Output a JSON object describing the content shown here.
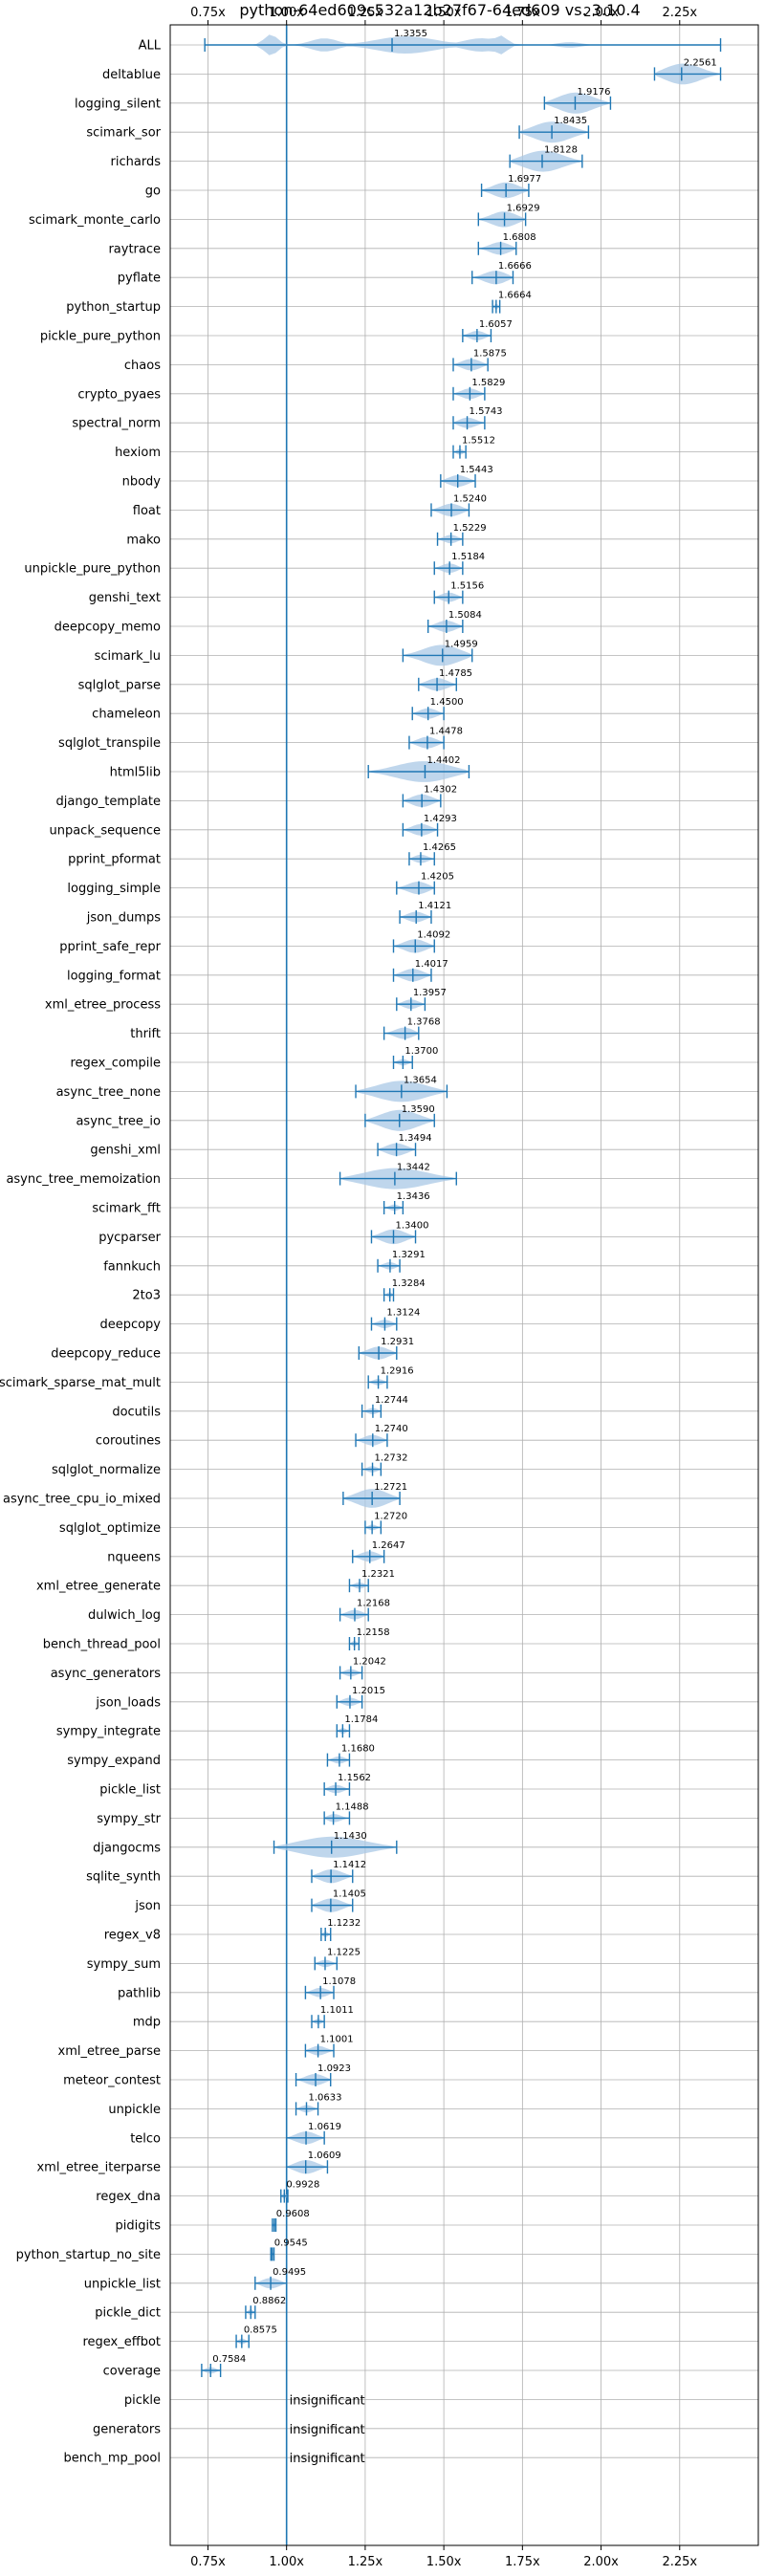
{
  "chart_data": {
    "type": "violin",
    "title": "python-64ed609c532a12b27f67-64ed609 vs. 3.10.4",
    "xlabel": "",
    "ylabel": "",
    "xlim": [
      0.63,
      2.5
    ],
    "x_ticks": [
      0.75,
      1.0,
      1.25,
      1.5,
      1.75,
      2.0,
      2.25
    ],
    "x_tick_labels": [
      "0.75x",
      "1.00x",
      "1.25x",
      "1.50x",
      "1.75x",
      "2.00x",
      "2.25x"
    ],
    "x_ticks_top": true,
    "grid": true,
    "reference_line": 1.0,
    "insignificant_text": "insignificant",
    "benchmarks": [
      {
        "name": "ALL",
        "value": 1.3355,
        "min": 0.74,
        "max": 2.38,
        "shape": "multi",
        "label": "1.3355"
      },
      {
        "name": "deltablue",
        "value": 2.2561,
        "min": 2.17,
        "max": 2.38,
        "label": "2.2561"
      },
      {
        "name": "logging_silent",
        "value": 1.9176,
        "min": 1.82,
        "max": 2.03,
        "label": "1.9176"
      },
      {
        "name": "scimark_sor",
        "value": 1.8435,
        "min": 1.74,
        "max": 1.96,
        "label": "1.8435"
      },
      {
        "name": "richards",
        "value": 1.8128,
        "min": 1.71,
        "max": 1.94,
        "label": "1.8128"
      },
      {
        "name": "go",
        "value": 1.6977,
        "min": 1.62,
        "max": 1.77,
        "label": "1.6977"
      },
      {
        "name": "scimark_monte_carlo",
        "value": 1.6929,
        "min": 1.61,
        "max": 1.76,
        "label": "1.6929"
      },
      {
        "name": "raytrace",
        "value": 1.6808,
        "min": 1.61,
        "max": 1.73,
        "label": "1.6808"
      },
      {
        "name": "pyflate",
        "value": 1.6666,
        "min": 1.59,
        "max": 1.72,
        "label": "1.6666"
      },
      {
        "name": "python_startup",
        "value": 1.6664,
        "min": 1.655,
        "max": 1.678,
        "label": "1.6664"
      },
      {
        "name": "pickle_pure_python",
        "value": 1.6057,
        "min": 1.56,
        "max": 1.65,
        "label": "1.6057"
      },
      {
        "name": "chaos",
        "value": 1.5875,
        "min": 1.53,
        "max": 1.64,
        "label": "1.5875"
      },
      {
        "name": "crypto_pyaes",
        "value": 1.5829,
        "min": 1.53,
        "max": 1.63,
        "label": "1.5829"
      },
      {
        "name": "spectral_norm",
        "value": 1.5743,
        "min": 1.53,
        "max": 1.63,
        "label": "1.5743"
      },
      {
        "name": "hexiom",
        "value": 1.5512,
        "min": 1.53,
        "max": 1.57,
        "label": "1.5512"
      },
      {
        "name": "nbody",
        "value": 1.5443,
        "min": 1.49,
        "max": 1.6,
        "label": "1.5443"
      },
      {
        "name": "float",
        "value": 1.524,
        "min": 1.46,
        "max": 1.58,
        "label": "1.5240"
      },
      {
        "name": "mako",
        "value": 1.5229,
        "min": 1.48,
        "max": 1.56,
        "label": "1.5229"
      },
      {
        "name": "unpickle_pure_python",
        "value": 1.5184,
        "min": 1.47,
        "max": 1.56,
        "label": "1.5184"
      },
      {
        "name": "genshi_text",
        "value": 1.5156,
        "min": 1.47,
        "max": 1.56,
        "label": "1.5156"
      },
      {
        "name": "deepcopy_memo",
        "value": 1.5084,
        "min": 1.45,
        "max": 1.56,
        "label": "1.5084"
      },
      {
        "name": "scimark_lu",
        "value": 1.4959,
        "min": 1.37,
        "max": 1.59,
        "label": "1.4959"
      },
      {
        "name": "sqlglot_parse",
        "value": 1.4785,
        "min": 1.42,
        "max": 1.54,
        "label": "1.4785"
      },
      {
        "name": "chameleon",
        "value": 1.45,
        "min": 1.4,
        "max": 1.5,
        "label": "1.4500"
      },
      {
        "name": "sqlglot_transpile",
        "value": 1.4478,
        "min": 1.39,
        "max": 1.5,
        "label": "1.4478"
      },
      {
        "name": "html5lib",
        "value": 1.4402,
        "min": 1.26,
        "max": 1.58,
        "label": "1.4402"
      },
      {
        "name": "django_template",
        "value": 1.4302,
        "min": 1.37,
        "max": 1.49,
        "label": "1.4302"
      },
      {
        "name": "unpack_sequence",
        "value": 1.4293,
        "min": 1.37,
        "max": 1.48,
        "label": "1.4293"
      },
      {
        "name": "pprint_pformat",
        "value": 1.4265,
        "min": 1.39,
        "max": 1.47,
        "label": "1.4265"
      },
      {
        "name": "logging_simple",
        "value": 1.4205,
        "min": 1.35,
        "max": 1.47,
        "label": "1.4205"
      },
      {
        "name": "json_dumps",
        "value": 1.4121,
        "min": 1.36,
        "max": 1.46,
        "label": "1.4121"
      },
      {
        "name": "pprint_safe_repr",
        "value": 1.4092,
        "min": 1.34,
        "max": 1.47,
        "label": "1.4092"
      },
      {
        "name": "logging_format",
        "value": 1.4017,
        "min": 1.34,
        "max": 1.46,
        "label": "1.4017"
      },
      {
        "name": "xml_etree_process",
        "value": 1.3957,
        "min": 1.35,
        "max": 1.44,
        "label": "1.3957"
      },
      {
        "name": "thrift",
        "value": 1.3768,
        "min": 1.31,
        "max": 1.42,
        "label": "1.3768"
      },
      {
        "name": "regex_compile",
        "value": 1.37,
        "min": 1.34,
        "max": 1.4,
        "label": "1.3700"
      },
      {
        "name": "async_tree_none",
        "value": 1.3654,
        "min": 1.22,
        "max": 1.51,
        "label": "1.3654"
      },
      {
        "name": "async_tree_io",
        "value": 1.359,
        "min": 1.25,
        "max": 1.47,
        "label": "1.3590"
      },
      {
        "name": "genshi_xml",
        "value": 1.3494,
        "min": 1.29,
        "max": 1.41,
        "label": "1.3494"
      },
      {
        "name": "async_tree_memoization",
        "value": 1.3442,
        "min": 1.17,
        "max": 1.54,
        "label": "1.3442"
      },
      {
        "name": "scimark_fft",
        "value": 1.3436,
        "min": 1.31,
        "max": 1.37,
        "label": "1.3436"
      },
      {
        "name": "pycparser",
        "value": 1.34,
        "min": 1.27,
        "max": 1.41,
        "label": "1.3400"
      },
      {
        "name": "fannkuch",
        "value": 1.3291,
        "min": 1.29,
        "max": 1.36,
        "label": "1.3291"
      },
      {
        "name": "2to3",
        "value": 1.3284,
        "min": 1.31,
        "max": 1.34,
        "label": "1.3284"
      },
      {
        "name": "deepcopy",
        "value": 1.3124,
        "min": 1.27,
        "max": 1.35,
        "label": "1.3124"
      },
      {
        "name": "deepcopy_reduce",
        "value": 1.2931,
        "min": 1.23,
        "max": 1.35,
        "label": "1.2931"
      },
      {
        "name": "scimark_sparse_mat_mult",
        "value": 1.2916,
        "min": 1.26,
        "max": 1.32,
        "label": "1.2916"
      },
      {
        "name": "docutils",
        "value": 1.2744,
        "min": 1.24,
        "max": 1.3,
        "label": "1.2744"
      },
      {
        "name": "coroutines",
        "value": 1.274,
        "min": 1.22,
        "max": 1.32,
        "label": "1.2740"
      },
      {
        "name": "sqlglot_normalize",
        "value": 1.2732,
        "min": 1.24,
        "max": 1.3,
        "label": "1.2732"
      },
      {
        "name": "async_tree_cpu_io_mixed",
        "value": 1.2721,
        "min": 1.18,
        "max": 1.36,
        "label": "1.2721"
      },
      {
        "name": "sqlglot_optimize",
        "value": 1.272,
        "min": 1.25,
        "max": 1.3,
        "label": "1.2720"
      },
      {
        "name": "nqueens",
        "value": 1.2647,
        "min": 1.21,
        "max": 1.31,
        "label": "1.2647"
      },
      {
        "name": "xml_etree_generate",
        "value": 1.2321,
        "min": 1.2,
        "max": 1.26,
        "label": "1.2321"
      },
      {
        "name": "dulwich_log",
        "value": 1.2168,
        "min": 1.17,
        "max": 1.26,
        "label": "1.2168"
      },
      {
        "name": "bench_thread_pool",
        "value": 1.2158,
        "min": 1.2,
        "max": 1.23,
        "label": "1.2158"
      },
      {
        "name": "async_generators",
        "value": 1.2042,
        "min": 1.17,
        "max": 1.24,
        "label": "1.2042"
      },
      {
        "name": "json_loads",
        "value": 1.2015,
        "min": 1.16,
        "max": 1.24,
        "label": "1.2015"
      },
      {
        "name": "sympy_integrate",
        "value": 1.1784,
        "min": 1.16,
        "max": 1.2,
        "label": "1.1784"
      },
      {
        "name": "sympy_expand",
        "value": 1.168,
        "min": 1.13,
        "max": 1.2,
        "label": "1.1680"
      },
      {
        "name": "pickle_list",
        "value": 1.1562,
        "min": 1.12,
        "max": 1.2,
        "label": "1.1562"
      },
      {
        "name": "sympy_str",
        "value": 1.1488,
        "min": 1.12,
        "max": 1.2,
        "label": "1.1488"
      },
      {
        "name": "djangocms",
        "value": 1.143,
        "min": 0.96,
        "max": 1.35,
        "label": "1.1430"
      },
      {
        "name": "sqlite_synth",
        "value": 1.1412,
        "min": 1.08,
        "max": 1.21,
        "label": "1.1412"
      },
      {
        "name": "json",
        "value": 1.1405,
        "min": 1.08,
        "max": 1.21,
        "label": "1.1405"
      },
      {
        "name": "regex_v8",
        "value": 1.1232,
        "min": 1.11,
        "max": 1.14,
        "label": "1.1232"
      },
      {
        "name": "sympy_sum",
        "value": 1.1225,
        "min": 1.09,
        "max": 1.16,
        "label": "1.1225"
      },
      {
        "name": "pathlib",
        "value": 1.1078,
        "min": 1.06,
        "max": 1.15,
        "label": "1.1078"
      },
      {
        "name": "mdp",
        "value": 1.1011,
        "min": 1.08,
        "max": 1.12,
        "label": "1.1011"
      },
      {
        "name": "xml_etree_parse",
        "value": 1.1001,
        "min": 1.06,
        "max": 1.15,
        "label": "1.1001"
      },
      {
        "name": "meteor_contest",
        "value": 1.0923,
        "min": 1.03,
        "max": 1.14,
        "label": "1.0923"
      },
      {
        "name": "unpickle",
        "value": 1.0633,
        "min": 1.03,
        "max": 1.1,
        "label": "1.0633"
      },
      {
        "name": "telco",
        "value": 1.0619,
        "min": 1.0,
        "max": 1.12,
        "label": "1.0619"
      },
      {
        "name": "xml_etree_iterparse",
        "value": 1.0609,
        "min": 1.0,
        "max": 1.13,
        "label": "1.0609"
      },
      {
        "name": "regex_dna",
        "value": 0.9928,
        "min": 0.982,
        "max": 1.004,
        "label": "0.9928"
      },
      {
        "name": "pidigits",
        "value": 0.9608,
        "min": 0.955,
        "max": 0.966,
        "label": "0.9608"
      },
      {
        "name": "python_startup_no_site",
        "value": 0.9545,
        "min": 0.95,
        "max": 0.96,
        "label": "0.9545"
      },
      {
        "name": "unpickle_list",
        "value": 0.9495,
        "min": 0.9,
        "max": 1.0,
        "label": "0.9495"
      },
      {
        "name": "pickle_dict",
        "value": 0.8862,
        "min": 0.87,
        "max": 0.9,
        "label": "0.8862"
      },
      {
        "name": "regex_effbot",
        "value": 0.8575,
        "min": 0.84,
        "max": 0.88,
        "label": "0.8575"
      },
      {
        "name": "coverage",
        "value": 0.7584,
        "min": 0.73,
        "max": 0.79,
        "label": "0.7584"
      },
      {
        "name": "pickle",
        "insignificant": true
      },
      {
        "name": "generators",
        "insignificant": true
      },
      {
        "name": "bench_mp_pool",
        "insignificant": true
      }
    ]
  },
  "colors": {
    "violin_fill": "#a9c8e6",
    "bar_stroke": "#1f77b4",
    "grid": "#b0b0b0",
    "axis": "#000000"
  }
}
